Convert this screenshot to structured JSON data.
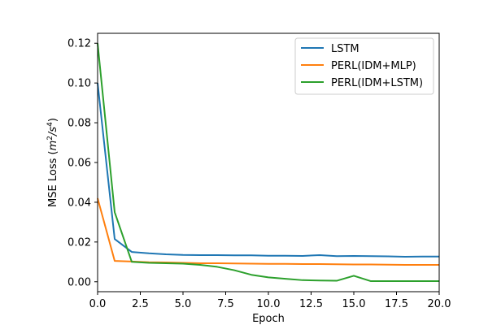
{
  "chart_data": {
    "type": "line",
    "title": "",
    "xlabel": "Epoch",
    "ylabel_main": "MSE Loss (",
    "ylabel_unit_base1": "m",
    "ylabel_unit_exp1": "2",
    "ylabel_unit_slash": "/",
    "ylabel_unit_base2": "s",
    "ylabel_unit_exp2": "4",
    "ylabel_close": ")",
    "xlim": [
      0,
      20
    ],
    "ylim": [
      -0.005,
      0.125
    ],
    "x_ticks": [
      0,
      2.5,
      5,
      7.5,
      10,
      12.5,
      15,
      17.5,
      20
    ],
    "x_tick_labels": [
      "0.0",
      "2.5",
      "5.0",
      "7.5",
      "10.0",
      "12.5",
      "15.0",
      "17.5",
      "20.0"
    ],
    "y_ticks": [
      0,
      0.02,
      0.04,
      0.06,
      0.08,
      0.1,
      0.12
    ],
    "y_tick_labels": [
      "0.00",
      "0.02",
      "0.04",
      "0.06",
      "0.08",
      "0.10",
      "0.12"
    ],
    "grid": false,
    "legend_position": "top-right",
    "x": [
      0,
      1,
      2,
      3,
      4,
      5,
      6,
      7,
      8,
      9,
      10,
      11,
      12,
      13,
      14,
      15,
      16,
      17,
      18,
      19,
      20
    ],
    "series": [
      {
        "name": "LSTM",
        "color": "#1f77b4",
        "values": [
          0.1,
          0.0215,
          0.015,
          0.0143,
          0.0138,
          0.0135,
          0.0134,
          0.0134,
          0.0133,
          0.0133,
          0.0131,
          0.0131,
          0.013,
          0.0134,
          0.0129,
          0.013,
          0.0129,
          0.0128,
          0.0126,
          0.0127,
          0.0127
        ]
      },
      {
        "name": "PERL(IDM+MLP)",
        "color": "#ff7f0e",
        "values": [
          0.042,
          0.0105,
          0.0102,
          0.0098,
          0.0097,
          0.0095,
          0.0093,
          0.0093,
          0.0092,
          0.0091,
          0.009,
          0.009,
          0.0089,
          0.0089,
          0.0088,
          0.0087,
          0.0087,
          0.0086,
          0.0085,
          0.0085,
          0.0085
        ]
      },
      {
        "name": "PERL(IDM+LSTM)",
        "color": "#2ca02c",
        "values": [
          0.12,
          0.035,
          0.01,
          0.0095,
          0.0093,
          0.0091,
          0.0085,
          0.0075,
          0.0058,
          0.0035,
          0.0022,
          0.0015,
          0.0008,
          0.0006,
          0.0005,
          0.003,
          0.0003,
          0.0003,
          0.0003,
          0.0003,
          0.0003
        ]
      }
    ]
  }
}
